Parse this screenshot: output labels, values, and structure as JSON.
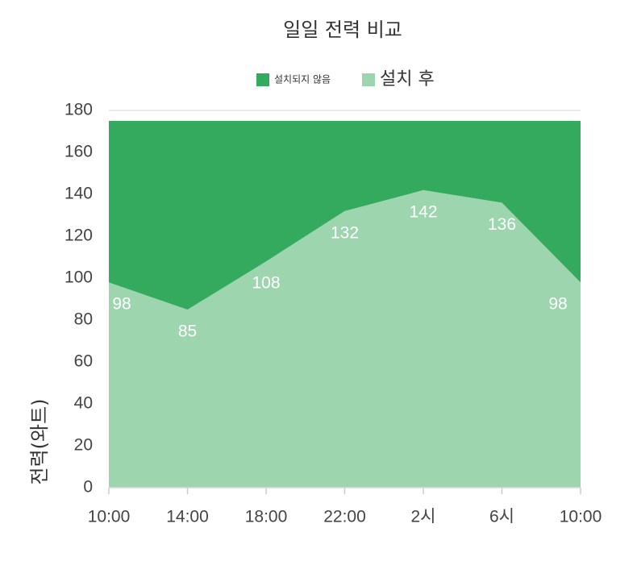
{
  "chart_data": {
    "type": "area",
    "title": "일일 전력 비교",
    "y_label": "전력(와트)",
    "categories": [
      "10:00",
      "14:00",
      "18:00",
      "22:00",
      "2시",
      "6시",
      "10:00"
    ],
    "series": [
      {
        "name": "설치되지 않음",
        "color": "#34aa5e",
        "values": [
          175,
          175,
          175,
          175,
          175,
          175,
          175
        ]
      },
      {
        "name": "설치 후",
        "color": "#9dd6ae",
        "values": [
          98,
          85,
          108,
          132,
          142,
          136,
          98
        ]
      }
    ],
    "ylim": [
      0,
      180
    ],
    "yticks": [
      0,
      20,
      40,
      60,
      80,
      100,
      120,
      140,
      160,
      180
    ],
    "grid": true
  }
}
